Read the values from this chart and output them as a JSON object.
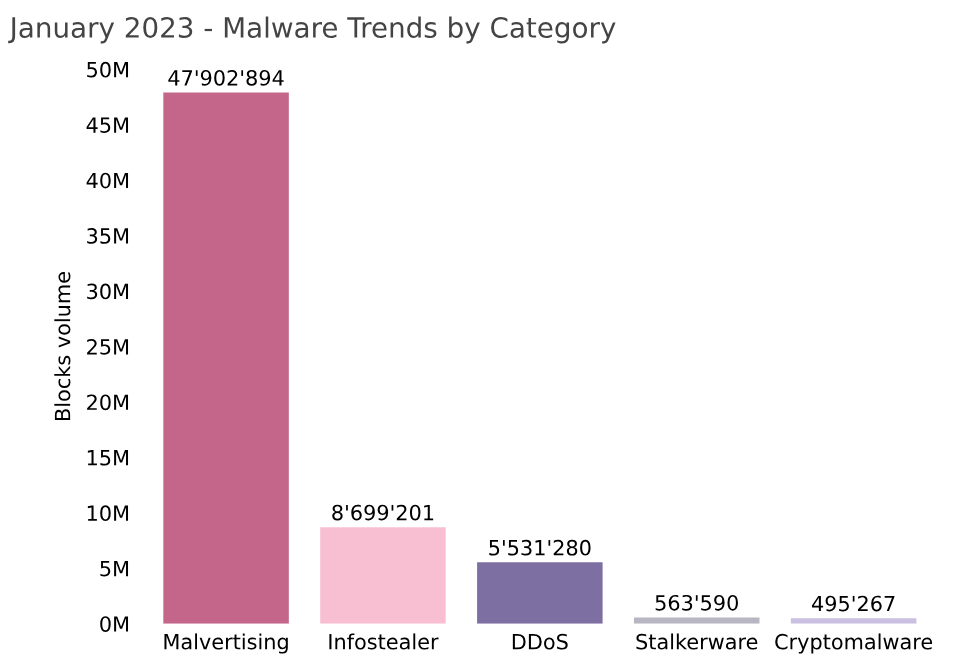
{
  "chart_data": {
    "type": "bar",
    "title": "January 2023 - Malware Trends by Category",
    "ylabel": "Blocks volume",
    "categories": [
      "Malvertising",
      "Infostealer",
      "DDoS",
      "Stalkerware",
      "Cryptomalware"
    ],
    "values": [
      47902894,
      8699201,
      5531280,
      563590,
      495267
    ],
    "value_labels": [
      "47'902'894",
      "8'699'201",
      "5'531'280",
      "563'590",
      "495'267"
    ],
    "colors": [
      "#c4668a",
      "#f8bfd3",
      "#7e6fa3",
      "#b9b6c4",
      "#c9c0e2"
    ],
    "ylim": [
      0,
      50000000
    ],
    "yticks": [
      {
        "value": 0,
        "label": "0M"
      },
      {
        "value": 5000000,
        "label": "5M"
      },
      {
        "value": 10000000,
        "label": "10M"
      },
      {
        "value": 15000000,
        "label": "15M"
      },
      {
        "value": 20000000,
        "label": "20M"
      },
      {
        "value": 25000000,
        "label": "25M"
      },
      {
        "value": 30000000,
        "label": "30M"
      },
      {
        "value": 35000000,
        "label": "35M"
      },
      {
        "value": 40000000,
        "label": "40M"
      },
      {
        "value": 45000000,
        "label": "45M"
      },
      {
        "value": 50000000,
        "label": "50M"
      }
    ],
    "grid": false
  }
}
